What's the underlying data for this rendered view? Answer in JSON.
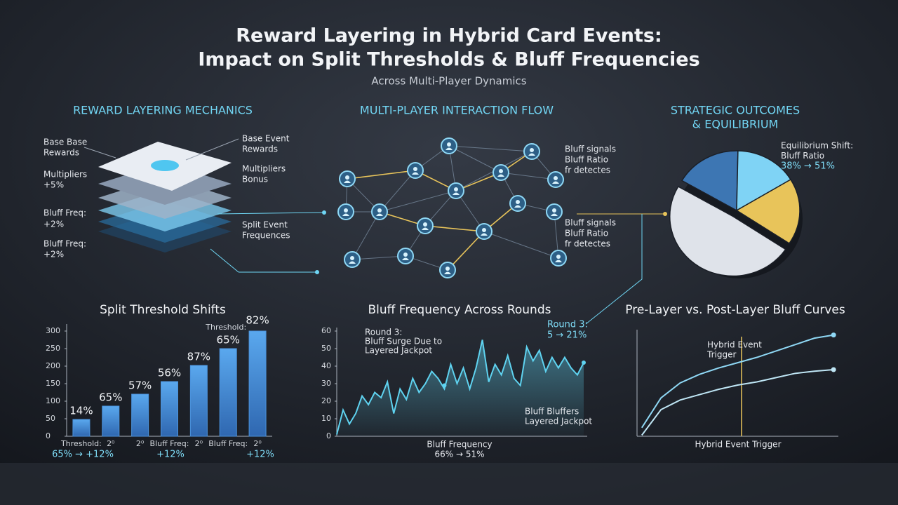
{
  "title_lines": [
    "Reward Layering in Hybrid Card Events:",
    "Impact on Split Thresholds & Bluff Frequencies"
  ],
  "subtitle": "Across Multi-Player Dynamics",
  "sections": {
    "mechanics": "REWARD LAYERING MECHANICS",
    "flow": "MULTI-PLAYER INTERACTION FLOW",
    "outcomes": [
      "STRATEGIC OUTCOMES",
      "& EQUILIBRIUM"
    ]
  },
  "layer_labels": {
    "left": [
      [
        "Base Base",
        "Rewards"
      ],
      [
        "Multipliers",
        "+5%"
      ],
      [
        "Bluff Freq:",
        "+2%"
      ],
      [
        "Bluff Freq:",
        "+2%"
      ]
    ],
    "right": [
      [
        "Base Event",
        "Rewards"
      ],
      [
        "Multipliers",
        "Bonus"
      ],
      [
        "Split Event",
        "Frequences"
      ]
    ]
  },
  "network_notes": [
    [
      "Bluff signals",
      "Bluff Ratio",
      "fr detectes"
    ],
    [
      "Bluff signals",
      "Bluff Ratio",
      "fr detectes"
    ]
  ],
  "chart_data": [
    {
      "type": "pie",
      "values": [
        17,
        16,
        18,
        49
      ],
      "colors": [
        "#3d76b3",
        "#7fd3f5",
        "#e8c45a",
        "#dfe3ea"
      ],
      "annotation": [
        "Equilibrium Shift:",
        "Bluff Ratio",
        "38% → 51%"
      ]
    },
    {
      "type": "bar",
      "title": "Split Threshold Shifts",
      "categories": [
        "Threshold:",
        "2⁰",
        "2⁰",
        "Bluff Freq:",
        "2⁰",
        "Bluff Freq:",
        "2⁰"
      ],
      "values": [
        48,
        86,
        120,
        156,
        202,
        250,
        300
      ],
      "color": "#4c93dd",
      "ylim": [
        0,
        300
      ],
      "yticks": [
        0,
        50,
        100,
        150,
        200,
        250,
        300
      ],
      "bar_notes": [
        "14%",
        "65%",
        "57%",
        "56%",
        "87%",
        "65%",
        "82%"
      ],
      "threshold_note": "Threshold:",
      "footnotes": [
        "65% → +12%",
        "+12%",
        "+12%"
      ]
    },
    {
      "type": "area",
      "title": "Bluff Frequency Across Rounds",
      "x": [
        1,
        2,
        3,
        4,
        5,
        6,
        7,
        8,
        9,
        10,
        11,
        12,
        13,
        14,
        15,
        16,
        17,
        18,
        19,
        20,
        21,
        22,
        23,
        24,
        25,
        26,
        27,
        28,
        29,
        30,
        31,
        32,
        33,
        34,
        35,
        36,
        37,
        38,
        39,
        40
      ],
      "values": [
        1,
        15,
        7,
        13,
        23,
        18,
        25,
        22,
        31,
        13,
        27,
        21,
        33,
        25,
        30,
        37,
        33,
        27,
        41,
        30,
        39,
        27,
        39,
        55,
        31,
        41,
        35,
        46,
        33,
        29,
        51,
        43,
        49,
        37,
        45,
        39,
        45,
        39,
        35,
        42
      ],
      "xlim": [
        1,
        40
      ],
      "ylim": [
        0,
        60
      ],
      "yticks": [
        0,
        10,
        20,
        30,
        40,
        50,
        60
      ],
      "color": "#5fd3f0",
      "x_label": "Bluff Frequency",
      "x_note": "66% → 51%",
      "annotations": [
        [
          "Round 3:",
          "Bluff Surge Due to",
          "Layered Jackpot"
        ],
        [
          "Round 3:",
          "5 → 21%"
        ],
        [
          "Bluff Bluffers",
          "Layered Jackpot"
        ]
      ]
    },
    {
      "type": "line",
      "title": "Pre-Layer vs. Post-Layer Bluff Curves",
      "x": [
        0,
        1,
        2,
        3,
        4,
        5,
        6,
        7,
        8,
        9,
        10
      ],
      "series": [
        {
          "color": "#8fd8f5",
          "values": [
            0.8,
            3.6,
            5.0,
            5.8,
            6.4,
            6.9,
            7.4,
            8.0,
            8.6,
            9.2,
            9.5
          ]
        },
        {
          "color": "#bfe6f5",
          "values": [
            0.1,
            2.5,
            3.4,
            3.9,
            4.4,
            4.8,
            5.1,
            5.5,
            5.9,
            6.1,
            6.25
          ]
        }
      ],
      "xlim": [
        -0.25,
        10.25
      ],
      "ylim": [
        0,
        10
      ],
      "trigger": {
        "x": 5.2,
        "label": [
          "Hybrid Event",
          "Trigger"
        ]
      },
      "x_label": "Hybrid Event Trigger"
    }
  ]
}
